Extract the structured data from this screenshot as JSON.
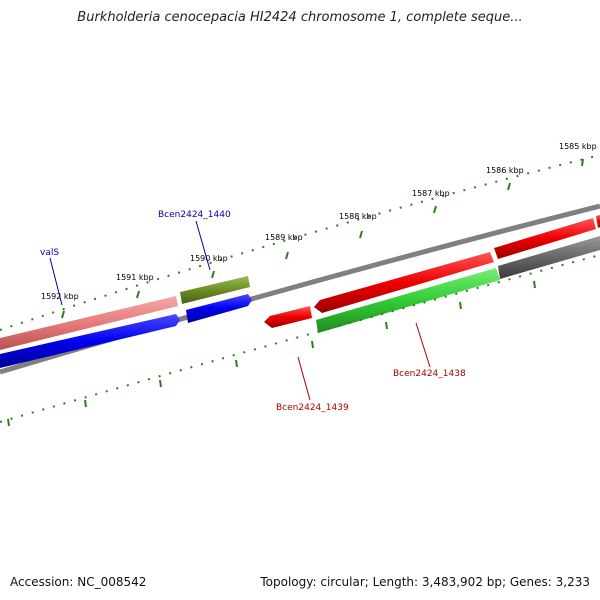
{
  "title": "Burkholderia cenocepacia HI2424 chromosome 1, complete seque...",
  "accession": "Accession: NC_008542",
  "summary": "Topology: circular; Length: 3,483,902 bp; Genes: 3,233",
  "ruler": [
    "1585 kbp",
    "1586 kbp",
    "1587 kbp",
    "1588 kbp",
    "1589 kbp",
    "1590 kbp",
    "1591 kbp",
    "1592 kbp"
  ],
  "genes": {
    "vals": "valS",
    "g1440": "Bcen2424_1440",
    "g1439": "Bcen2424_1439",
    "g1438": "Bcen2424_1438"
  },
  "colors": {
    "pink": "#e87c7c",
    "blue": "#0000ee",
    "olive": "#6b8e23",
    "red": "#ee0000",
    "green": "#33cc33",
    "gray": "#666666",
    "tick": "#2e7d1f"
  }
}
